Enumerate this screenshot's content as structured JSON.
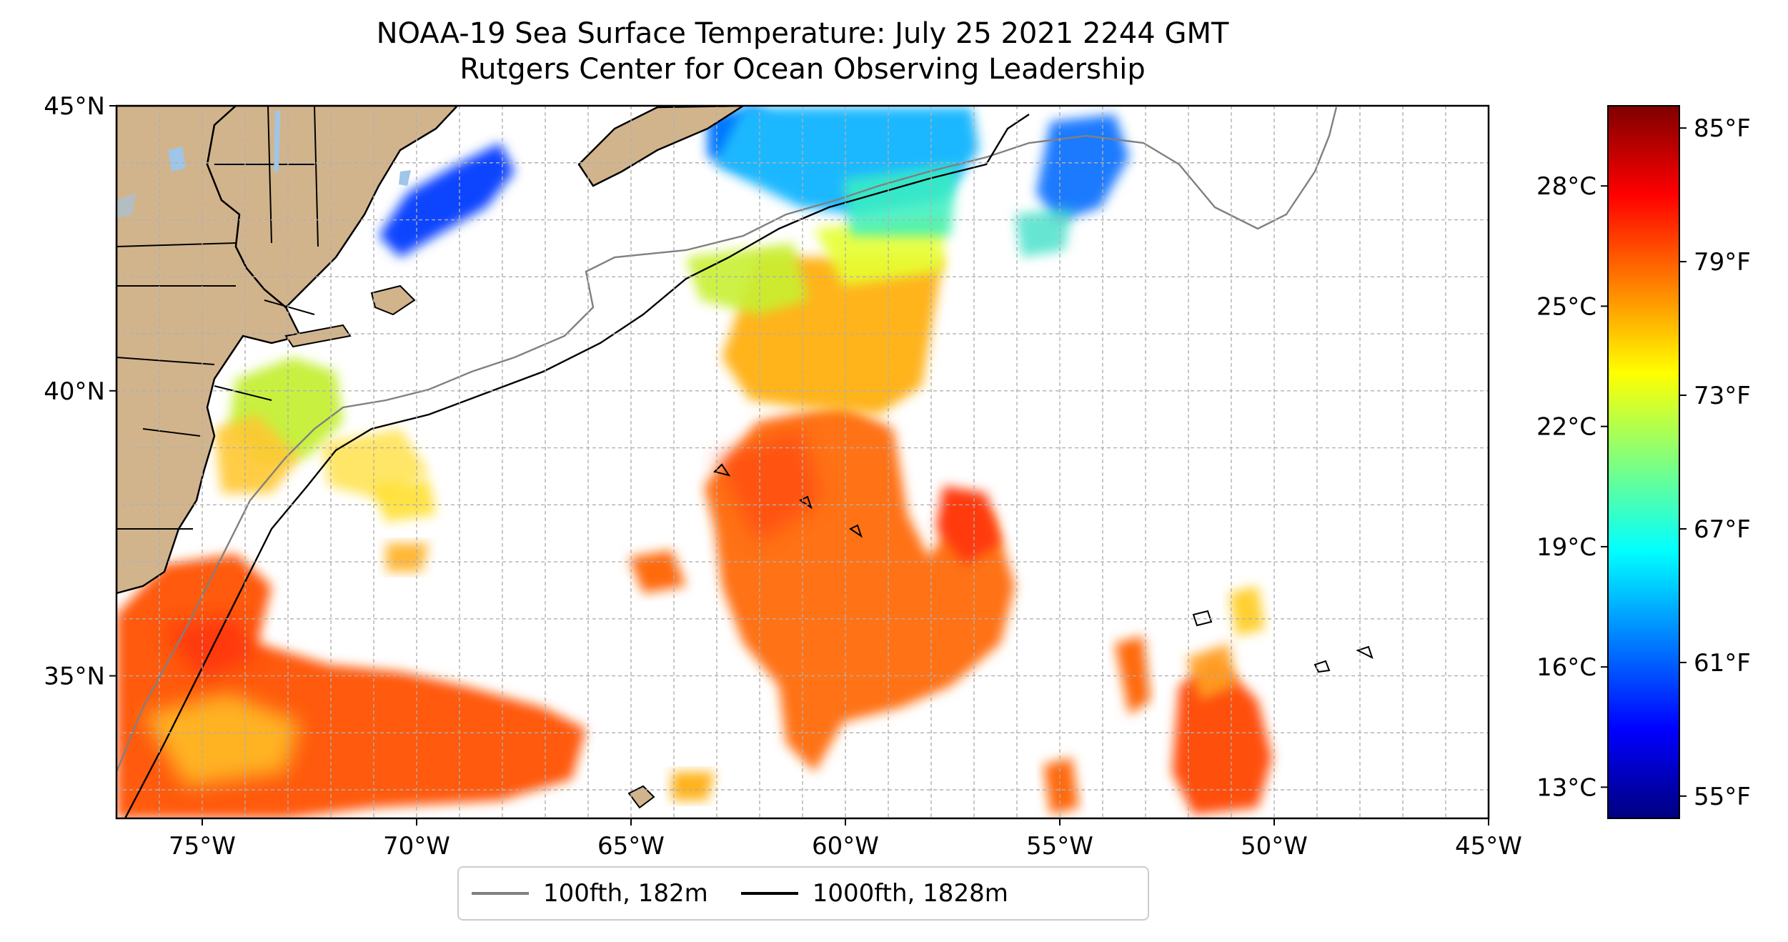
{
  "title": {
    "line1": "NOAA-19 Sea Surface Temperature: July 25 2021 2244 GMT",
    "line2": "Rutgers Center for Ocean Observing Leadership"
  },
  "map": {
    "lon_range": [
      -77,
      -45
    ],
    "lat_range": [
      32.5,
      45
    ],
    "lon_ticks": [
      {
        "value": -75,
        "label": "75°W"
      },
      {
        "value": -70,
        "label": "70°W"
      },
      {
        "value": -65,
        "label": "65°W"
      },
      {
        "value": -60,
        "label": "60°W"
      },
      {
        "value": -55,
        "label": "55°W"
      },
      {
        "value": -50,
        "label": "50°W"
      },
      {
        "value": -45,
        "label": "45°W"
      }
    ],
    "lat_ticks": [
      {
        "value": 45,
        "label": "45°N"
      },
      {
        "value": 40,
        "label": "40°N"
      },
      {
        "value": 35,
        "label": "35°N"
      }
    ],
    "grid": true,
    "colors": {
      "land": "#d2b48c",
      "water_lakes": "#9fc5e8",
      "contour_100fth": "#808080",
      "contour_1000fth": "#000000"
    }
  },
  "colorbar": {
    "celsius_ticks": [
      "13°C",
      "16°C",
      "19°C",
      "22°C",
      "25°C",
      "28°C"
    ],
    "fahrenheit_ticks": [
      "55°F",
      "61°F",
      "67°F",
      "73°F",
      "79°F",
      "85°F"
    ],
    "range_f": [
      54,
      86
    ],
    "colormap": "jet",
    "colormap_stops": [
      "#00007f",
      "#0000ff",
      "#007fff",
      "#00ffff",
      "#7fff7f",
      "#ffff00",
      "#ff7f00",
      "#ff0000",
      "#7f0000"
    ]
  },
  "legend": {
    "items": [
      {
        "label": "100fth, 182m",
        "color": "#808080"
      },
      {
        "label": "1000fth, 1828m",
        "color": "#000000"
      }
    ]
  }
}
